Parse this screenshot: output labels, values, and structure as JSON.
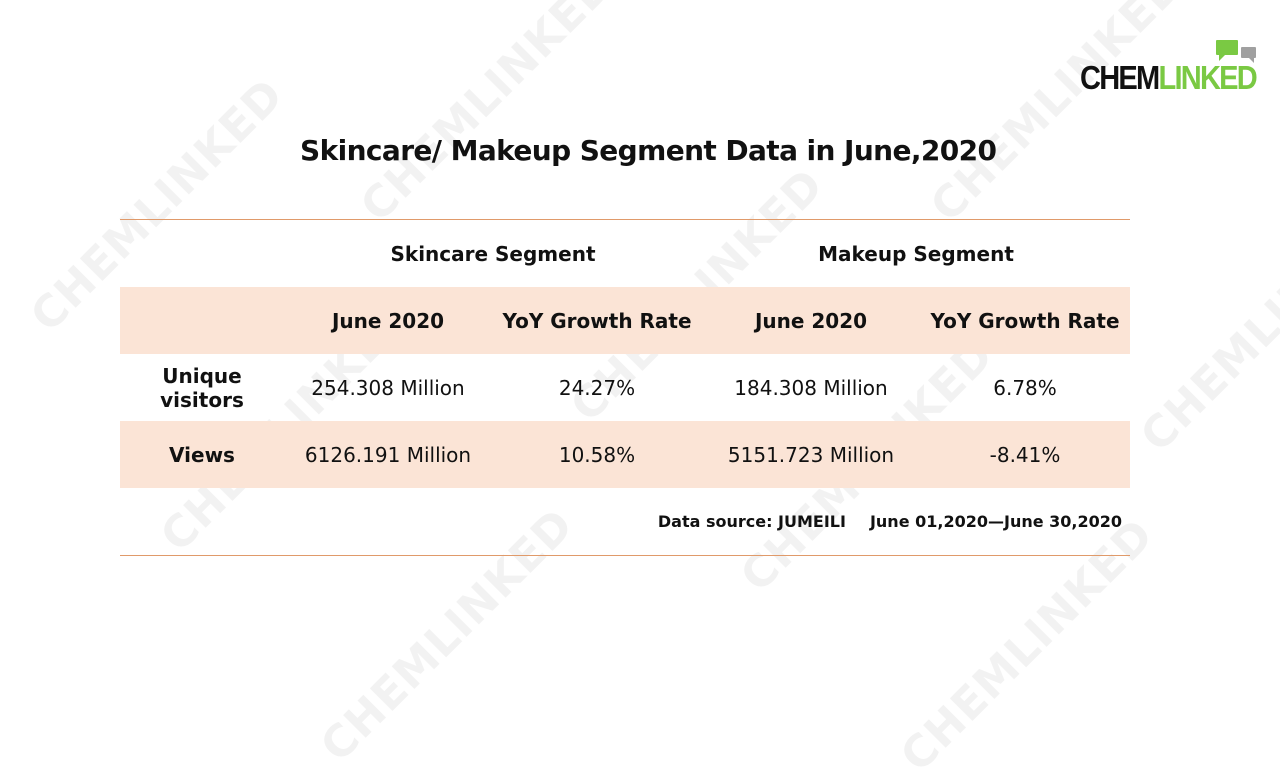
{
  "brand": {
    "part1": "CHEM",
    "part2": "LINKED"
  },
  "title": "Skincare/ Makeup Segment Data in June,2020",
  "table": {
    "group_headers": [
      "Skincare Segment",
      "Makeup Segment"
    ],
    "sub_headers": [
      "June 2020",
      "YoY Growth Rate",
      "June 2020",
      "YoY Growth Rate"
    ],
    "rows": [
      {
        "label": "Unique visitors",
        "values": [
          "254.308 Million",
          "24.27%",
          "184.308 Million",
          "6.78%"
        ]
      },
      {
        "label": "Views",
        "values": [
          "6126.191 Million",
          "10.58%",
          "5151.723 Million",
          "-8.41%"
        ]
      }
    ]
  },
  "source": {
    "label": "Data source: JUMEILI",
    "range": "June 01,2020—June 30,2020"
  },
  "colors": {
    "accent_green": "#7ac943",
    "row_shade": "#fbe4d6",
    "rule": "#e09a6a"
  }
}
